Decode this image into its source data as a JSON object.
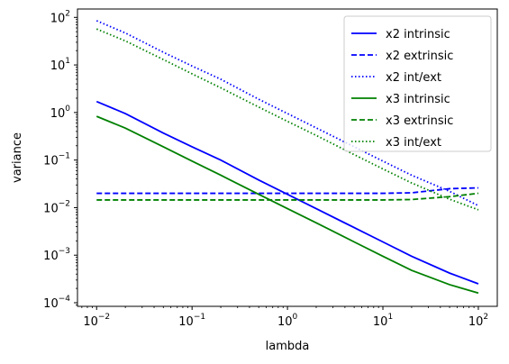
{
  "chart_data": {
    "type": "line",
    "xlabel": "lambda",
    "ylabel": "variance",
    "xscale": "log",
    "yscale": "log",
    "xlim": [
      0.0063,
      158
    ],
    "ylim": [
      8.4e-05,
      150
    ],
    "x_ticks": [
      0.01,
      0.1,
      1,
      10,
      100
    ],
    "y_ticks": [
      0.0001,
      0.001,
      0.01,
      0.1,
      1,
      10,
      100
    ],
    "x_tick_labels": [
      {
        "base": "10",
        "exp": "−2"
      },
      {
        "base": "10",
        "exp": "−1"
      },
      {
        "base": "10",
        "exp": "0"
      },
      {
        "base": "10",
        "exp": "1"
      },
      {
        "base": "10",
        "exp": "2"
      }
    ],
    "y_tick_labels": [
      {
        "base": "10",
        "exp": "−4"
      },
      {
        "base": "10",
        "exp": "−3"
      },
      {
        "base": "10",
        "exp": "−2"
      },
      {
        "base": "10",
        "exp": "−1"
      },
      {
        "base": "10",
        "exp": "0"
      },
      {
        "base": "10",
        "exp": "1"
      },
      {
        "base": "10",
        "exp": "2"
      }
    ],
    "grid": false,
    "legend_position": "top-right",
    "x": [
      0.01,
      0.02,
      0.05,
      0.1,
      0.2,
      0.5,
      1,
      2,
      5,
      10,
      20,
      50,
      100
    ],
    "series": [
      {
        "name": "x2 intrinsic",
        "color": "#0000ff",
        "style": "solid",
        "values": [
          1.7,
          0.95,
          0.37,
          0.19,
          0.1,
          0.038,
          0.019,
          0.0095,
          0.0038,
          0.0019,
          0.00095,
          0.00042,
          0.00025
        ]
      },
      {
        "name": "x2 extrinsic",
        "color": "#0000ff",
        "style": "dashed",
        "values": [
          0.02,
          0.02,
          0.02,
          0.02,
          0.02,
          0.02,
          0.02,
          0.02,
          0.02,
          0.02,
          0.0205,
          0.025,
          0.026
        ]
      },
      {
        "name": "x2 int/ext",
        "color": "#0000ff",
        "style": "dotted",
        "values": [
          85,
          47,
          18.5,
          9.5,
          5,
          1.9,
          0.95,
          0.475,
          0.19,
          0.095,
          0.048,
          0.022,
          0.011
        ]
      },
      {
        "name": "x3 intrinsic",
        "color": "#008000",
        "style": "solid",
        "values": [
          0.83,
          0.47,
          0.19,
          0.095,
          0.048,
          0.019,
          0.0095,
          0.0048,
          0.0019,
          0.00095,
          0.00048,
          0.00024,
          0.00016
        ]
      },
      {
        "name": "x3 extrinsic",
        "color": "#008000",
        "style": "dashed",
        "values": [
          0.0145,
          0.0145,
          0.0145,
          0.0145,
          0.0145,
          0.0145,
          0.0145,
          0.0145,
          0.0145,
          0.0145,
          0.0148,
          0.017,
          0.02
        ]
      },
      {
        "name": "x3 int/ext",
        "color": "#008000",
        "style": "dotted",
        "values": [
          57,
          32,
          13,
          6.5,
          3.3,
          1.3,
          0.65,
          0.33,
          0.13,
          0.065,
          0.033,
          0.015,
          0.009
        ]
      }
    ]
  }
}
